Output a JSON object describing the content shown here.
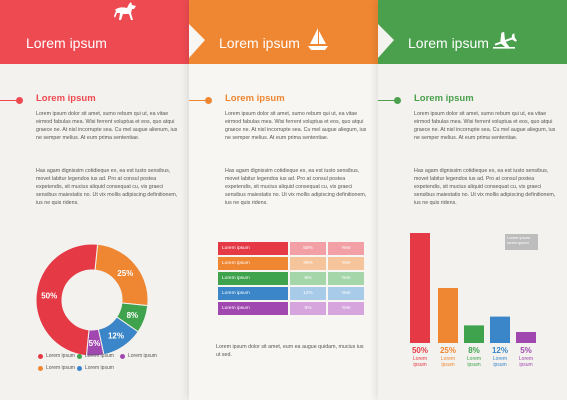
{
  "panels": [
    {
      "header": "Lorem ipsum",
      "color": "#ee4a51",
      "icon": "horse-icon",
      "section_title": "Lorem ipsum",
      "para1": "Lorem ipsum dolor sit amet, sumo rebum qui ut, ea vitae eirmod fabulas mea. Wisi ferrent voluptua et eos, quo atqui graece ne. At nisl incorrupte sea. Cu mel augue alienum, ius ne semper melius. At eum prima sententiae.",
      "para2": "Has agam dignissim cotidieque ex, ea est iusto sensibus, movet labitur legendos ius ad. Pro at consul postea expetendis, sit mucius aliquid consequat cu, vis graeci sensibus maiestatis no. Ut vix mollis adipiscing definitionem, ius ne quis ridens."
    },
    {
      "header": "Lorem ipsum",
      "color": "#ef8632",
      "icon": "sailboat-icon",
      "section_title": "Lorem ipsum",
      "para1": "Lorem ipsum dolor sit amet, sumo rebum qui ut, ea vitae eirmod fabulas mea. Wisi ferrent voluptua et eos, quo atqui graece ne. At nisl incorrupte sea. Cu mel augue aliegum, ius ne semper melius. At eum prima sententiae.",
      "para2": "Has agam dignissim cotidieque ex, ea est iusto sensibus, movet labitur legendos ius ad. Pro at consul postea expetendis, sit mucius aliquid consequat cu, vis graeci sensibus maiestatis no. Ut vix mollis adipiscing definitionem, ius ne quis ridens.",
      "footer_text": "Lorem ipsum dolor sit amet, eum ea augue quidam, mucius ius ut sed."
    },
    {
      "header": "Lorem ipsum",
      "color": "#4aa04c",
      "icon": "airplane-icon",
      "section_title": "Lorem ipsum",
      "para1": "Lorem ipsum dolor sit amet, sumo rebum qui ut, ea vitae eirmod fabulas mea. Wisi ferrent voluptua et eos, quo atqui graece ne. At nisl incorrupte sea. Cu mel augue aliegum, ius ne semper melius. At eum prima sententiae.",
      "para2": "Has agam dignissim cotidieque ex, ea est iusto sensibus, movet labitur legendos ius ad. Pro at consul postea expetendis, sit mucius aliquid consequat cu, vis graeci sensibus maiestatis no. Ut vix mollis adipiscing definitionem, ius ne quis ridens.",
      "tooltip": "Lorem ipsum lorem ipsum"
    }
  ],
  "chart_data": [
    {
      "type": "pie",
      "labels": [
        "50%",
        "25%",
        "8%",
        "12%",
        "5%"
      ],
      "values": [
        50,
        25,
        8,
        12,
        5
      ],
      "colors": [
        "#e63946",
        "#ef8632",
        "#3fa34d",
        "#3a86c8",
        "#a148b0"
      ],
      "legend": [
        {
          "label": "Lorem ipsum",
          "color": "#e63946"
        },
        {
          "label": "Lorem ipsum",
          "color": "#3fa34d"
        },
        {
          "label": "Lorem ipsum",
          "color": "#a148b0"
        },
        {
          "label": "Lorem ipsum",
          "color": "#ef8632"
        },
        {
          "label": "Lorem ipsum",
          "color": "#3a86c8"
        }
      ]
    },
    {
      "type": "table",
      "rows": [
        {
          "label": "Lorem ipsum",
          "value": "50%",
          "answer": "Yes!",
          "color": "#e63946",
          "light": "#f2a0a6"
        },
        {
          "label": "Lorem ipsum",
          "value": "25%",
          "answer": "Yes!",
          "color": "#ef8632",
          "light": "#f6c49b"
        },
        {
          "label": "Lorem ipsum",
          "value": "8%",
          "answer": "Yes!",
          "color": "#3fa34d",
          "light": "#a4d6a9"
        },
        {
          "label": "Lorem ipsum",
          "value": "12%",
          "answer": "Yes!",
          "color": "#3a86c8",
          "light": "#a7cbe8"
        },
        {
          "label": "Lorem ipsum",
          "value": "5%",
          "answer": "Yes!",
          "color": "#a148b0",
          "light": "#d6a5de"
        }
      ]
    },
    {
      "type": "bar",
      "categories": [
        "50%",
        "25%",
        "8%",
        "12%",
        "5%"
      ],
      "values": [
        50,
        25,
        8,
        12,
        5
      ],
      "sublabels": [
        "Lorem ipsum",
        "Lorem ipsum",
        "Lorem ipsum",
        "Lorem ipsum",
        "Lorem ipsum"
      ],
      "colors": [
        "#e63946",
        "#ef8632",
        "#3fa34d",
        "#3a86c8",
        "#a148b0"
      ]
    }
  ]
}
